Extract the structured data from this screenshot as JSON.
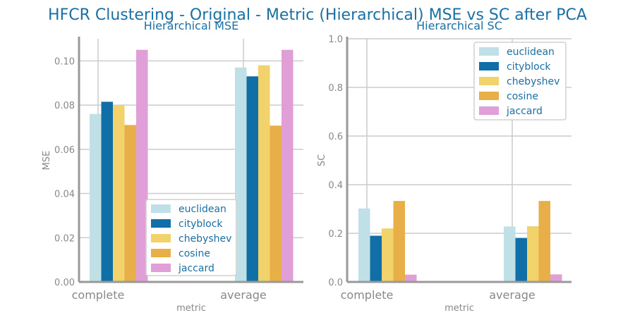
{
  "suptitle": "HFCR Clustering - Original - Metric (Hierarchical) MSE vs SC after PCA",
  "colors": {
    "euclidean": "#bfe0e6",
    "cityblock": "#0f6fa6",
    "chebyshev": "#f2d26b",
    "cosine": "#e8ae48",
    "jaccard": "#e19fd8",
    "title": "#1a6fa3",
    "axis": "#999999",
    "grid": "#cccccc"
  },
  "chart_data": [
    {
      "type": "bar",
      "title": "Hierarchical MSE",
      "xlabel": "metric",
      "ylabel": "MSE",
      "categories": [
        "complete",
        "average"
      ],
      "series": [
        {
          "name": "euclidean",
          "values": [
            0.076,
            0.097
          ]
        },
        {
          "name": "cityblock",
          "values": [
            0.0815,
            0.093
          ]
        },
        {
          "name": "chebyshev",
          "values": [
            0.08,
            0.098
          ]
        },
        {
          "name": "cosine",
          "values": [
            0.071,
            0.0707
          ]
        },
        {
          "name": "jaccard",
          "values": [
            0.105,
            0.105
          ]
        }
      ],
      "ylim": [
        0,
        0.11
      ],
      "yticks": [
        "0.00",
        "0.02",
        "0.04",
        "0.06",
        "0.08",
        "0.10"
      ],
      "ytick_values": [
        0,
        0.02,
        0.04,
        0.06,
        0.08,
        0.1
      ],
      "legend_position": "lower-right",
      "grid": true
    },
    {
      "type": "bar",
      "title": "Hierarchical SC",
      "xlabel": "metric",
      "ylabel": "SC",
      "categories": [
        "complete",
        "average"
      ],
      "series": [
        {
          "name": "euclidean",
          "values": [
            0.302,
            0.228
          ]
        },
        {
          "name": "cityblock",
          "values": [
            0.19,
            0.181
          ]
        },
        {
          "name": "chebyshev",
          "values": [
            0.22,
            0.229
          ]
        },
        {
          "name": "cosine",
          "values": [
            0.333,
            0.333
          ]
        },
        {
          "name": "jaccard",
          "values": [
            0.03,
            0.031
          ]
        }
      ],
      "ylim": [
        0,
        1.0
      ],
      "yticks": [
        "0.0",
        "0.2",
        "0.4",
        "0.6",
        "0.8",
        "1.0"
      ],
      "ytick_values": [
        0,
        0.2,
        0.4,
        0.6,
        0.8,
        1.0
      ],
      "legend_position": "upper-right",
      "grid": true
    }
  ]
}
